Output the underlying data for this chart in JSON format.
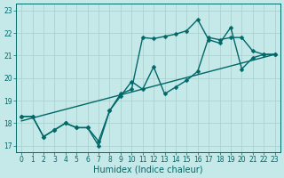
{
  "xlabel": "Humidex (Indice chaleur)",
  "background_color": "#c5e8e8",
  "plot_bg_color": "#c5e8e8",
  "grid_color": "#a8cece",
  "line_color": "#006868",
  "xlim": [
    -0.5,
    23.5
  ],
  "ylim": [
    16.7,
    23.3
  ],
  "yticks": [
    17,
    18,
    19,
    20,
    21,
    22,
    23
  ],
  "xticks": [
    0,
    1,
    2,
    3,
    4,
    5,
    6,
    7,
    8,
    9,
    10,
    11,
    12,
    13,
    14,
    15,
    16,
    17,
    18,
    19,
    20,
    21,
    22,
    23
  ],
  "line1_x": [
    0,
    1,
    2,
    3,
    4,
    5,
    6,
    7,
    8,
    9,
    10,
    11,
    12,
    13,
    14,
    15,
    16,
    17,
    18,
    19,
    20,
    21,
    22,
    23
  ],
  "line1_y": [
    18.3,
    18.3,
    17.4,
    17.7,
    18.0,
    17.8,
    17.8,
    17.0,
    18.55,
    19.3,
    19.5,
    21.8,
    21.75,
    21.85,
    21.95,
    22.1,
    22.6,
    21.7,
    21.55,
    22.25,
    20.4,
    20.9,
    21.05,
    21.05
  ],
  "line2_x": [
    0,
    1,
    2,
    3,
    4,
    5,
    6,
    7,
    8,
    9,
    10,
    11,
    12,
    13,
    14,
    15,
    16,
    17,
    18,
    19,
    20,
    21,
    22,
    23
  ],
  "line2_y": [
    18.3,
    18.3,
    17.4,
    17.7,
    18.0,
    17.8,
    17.8,
    17.2,
    18.55,
    19.2,
    19.85,
    19.5,
    20.5,
    19.3,
    19.6,
    19.9,
    20.3,
    21.8,
    21.7,
    21.8,
    21.8,
    21.2,
    21.05,
    21.05
  ],
  "line3_x": [
    0,
    23
  ],
  "line3_y": [
    18.1,
    21.05
  ],
  "marker_size": 2.5,
  "line_width": 1.0,
  "tick_fontsize": 5.5,
  "xlabel_fontsize": 7.0
}
